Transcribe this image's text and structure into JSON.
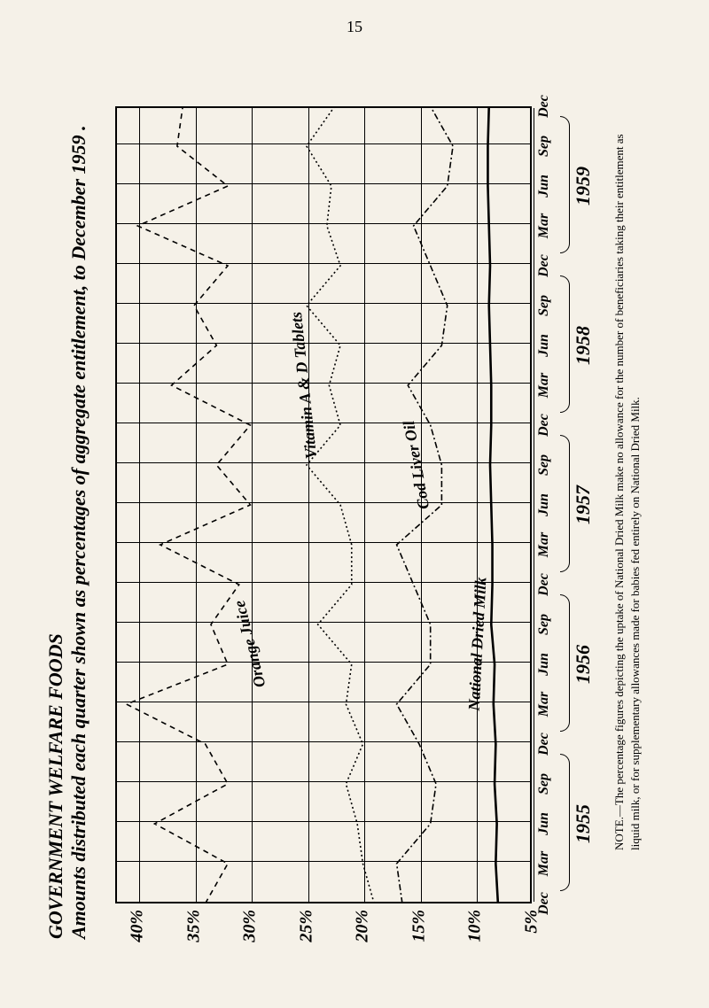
{
  "page_number": "15",
  "title": "GOVERNMENT WELFARE FOODS\nAmounts distributed each quarter shown as percentages of aggregate entitlement, to December 1959 .",
  "note": "NOTE.—The percentage figures depicting the uptake of National Dried Milk make no allowance for the number of beneficiaries taking their entitlement as liquid milk, or for supplementary allowances made for babies fed entirely on National Dried Milk.",
  "chart": {
    "type": "line",
    "background_color": "#f5f1e8",
    "line_color": "#000000",
    "ylim": [
      5,
      42
    ],
    "ytick_values": [
      5,
      10,
      15,
      20,
      25,
      30,
      35,
      40
    ],
    "ytick_labels": [
      "5%",
      "10%",
      "15%",
      "20%",
      "25%",
      "30%",
      "35%",
      "40%"
    ],
    "grid_color": "#000000",
    "x_quarters": [
      "Dec",
      "Mar",
      "Jun",
      "Sep",
      "Dec",
      "Mar",
      "Jun",
      "Sep",
      "Dec",
      "Mar",
      "Jun",
      "Sep",
      "Dec",
      "Mar",
      "Jun",
      "Sep",
      "Dec",
      "Mar",
      "Jun",
      "Sep",
      "Dec"
    ],
    "years": [
      "1955",
      "1956",
      "1957",
      "1958",
      "1959"
    ],
    "series": [
      {
        "name": "Orange Juice",
        "dash": "6 5",
        "width": 1.6,
        "label_style": "italic",
        "fontsize": 18,
        "data": [
          34,
          32,
          38.5,
          32,
          34,
          41,
          32,
          33.5,
          31,
          38,
          30,
          33,
          30,
          37,
          33,
          35,
          32,
          40,
          32,
          36.5,
          36
        ],
        "label_x": 6.5,
        "label_y": 30,
        "label_rot": -14
      },
      {
        "name": "Vitamin A & D Tablets",
        "dash": "2 3",
        "width": 1.6,
        "label_style": "italic",
        "fontsize": 18,
        "data": [
          19,
          20,
          20.5,
          21.5,
          20,
          21.5,
          21,
          24,
          21,
          21,
          22,
          25,
          22,
          23,
          22,
          25,
          22,
          23.2,
          22.8,
          25,
          22.5
        ],
        "label_x": 13,
        "label_y": 25.2,
        "label_rot": -6
      },
      {
        "name": "Cod Liver Oil",
        "dash": "7 3 2 3",
        "width": 1.6,
        "label_style": "italic",
        "fontsize": 18,
        "data": [
          16.5,
          17,
          14,
          13.5,
          15,
          17,
          14,
          14,
          15.5,
          17,
          13,
          13,
          14,
          16,
          13,
          12.5,
          14,
          15.5,
          12.5,
          12,
          14
        ],
        "label_x": 11,
        "label_y": 15.2,
        "label_rot": -10
      },
      {
        "name": "National Dried Milk",
        "dash": "",
        "width": 2.6,
        "label_style": "italic",
        "fontsize": 18,
        "data": [
          8,
          8.2,
          8.1,
          8.3,
          8.2,
          8.4,
          8.3,
          8.6,
          8.5,
          8.5,
          8.6,
          8.7,
          8.6,
          8.6,
          8.7,
          8.8,
          8.7,
          8.8,
          8.9,
          8.9,
          8.8
        ],
        "label_x": 6.5,
        "label_y": 9.8,
        "label_rot": 3
      }
    ]
  }
}
